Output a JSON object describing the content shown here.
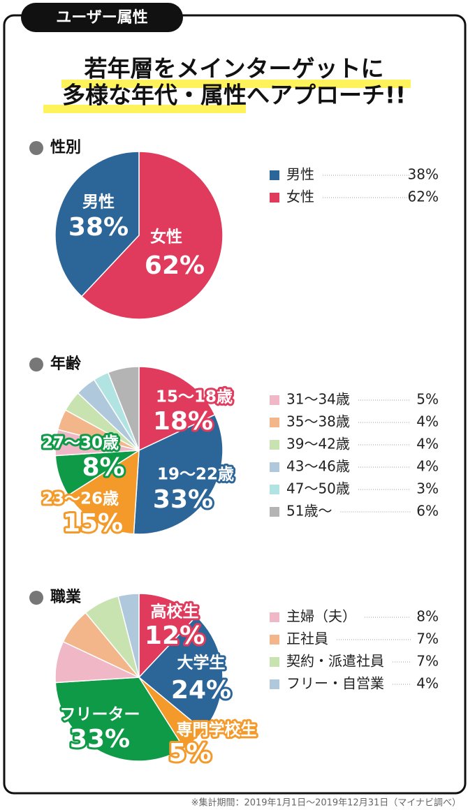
{
  "badge": "ユーザー属性",
  "headline": [
    "若年層をメインターゲットに",
    "多様な年代・属性へアプローチ!!"
  ],
  "footnote": "※集計期間：2019年1月1日〜2019年12月31日（マイナビ調べ）",
  "chart_data": [
    {
      "type": "pie",
      "title": "性別",
      "categories": [
        "女性",
        "男性"
      ],
      "values": [
        62,
        38
      ],
      "value_labels": [
        "62%",
        "38%"
      ],
      "colors": [
        "#e03a5c",
        "#2c6699"
      ]
    },
    {
      "type": "pie",
      "title": "年齢",
      "categories": [
        "15〜18歳",
        "19〜22歳",
        "23〜26歳",
        "27〜30歳",
        "31〜34歳",
        "35〜38歳",
        "39〜42歳",
        "43〜46歳",
        "47〜50歳",
        "51歳〜"
      ],
      "values": [
        18,
        33,
        15,
        8,
        5,
        4,
        4,
        4,
        3,
        6
      ],
      "value_labels": [
        "18%",
        "33%",
        "15%",
        "8%",
        "5%",
        "4%",
        "4%",
        "4%",
        "3%",
        "6%"
      ],
      "colors": [
        "#e03a5c",
        "#2c6699",
        "#f39a2b",
        "#0f9a48",
        "#f0b7c6",
        "#f3b58a",
        "#c8e3b0",
        "#b0c8dc",
        "#b1e3e3",
        "#b4b4b4"
      ]
    },
    {
      "type": "pie",
      "title": "職業",
      "categories": [
        "高校生",
        "大学生",
        "専門学校生",
        "フリーター",
        "主婦（夫）",
        "正社員",
        "契約・派遣社員",
        "フリー・自営業"
      ],
      "values": [
        12,
        24,
        5,
        33,
        8,
        7,
        7,
        4
      ],
      "value_labels": [
        "12%",
        "24%",
        "5%",
        "33%",
        "8%",
        "7%",
        "7%",
        "4%"
      ],
      "colors": [
        "#e03a5c",
        "#2c6699",
        "#f39a2b",
        "#0f9a48",
        "#f0b7c6",
        "#f3b58a",
        "#c8e3b0",
        "#b0c8dc"
      ]
    }
  ]
}
